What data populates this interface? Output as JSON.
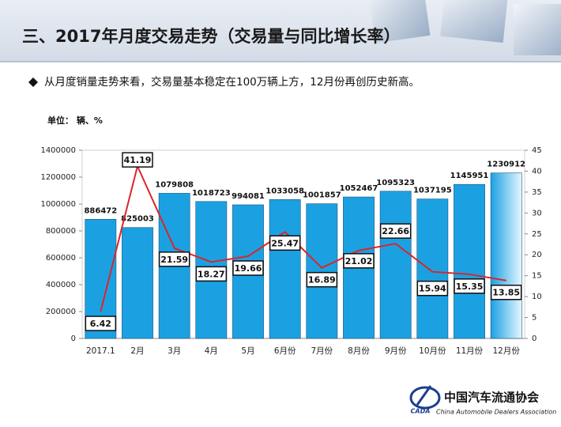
{
  "header": {
    "title": "三、2017年月度交易走势（交易量与同比增长率）"
  },
  "bullet": "从月度销量走势来看，交易量基本稳定在100万辆上方，12月份再创历史新高。",
  "chart_data": {
    "type": "bar-line",
    "unit_label": "单位：  辆、%",
    "categories": [
      "2017.1",
      "2月",
      "3月",
      "4月",
      "5月",
      "6月份",
      "7月份",
      "8月份",
      "9月份",
      "10月份",
      "11月份",
      "12月份"
    ],
    "series": [
      {
        "type": "bar",
        "color": "#1ba1e2",
        "values": [
          886472,
          825003,
          1079808,
          1018723,
          994081,
          1033058,
          1001857,
          1052467,
          1095323,
          1037195,
          1145951,
          1230912
        ]
      },
      {
        "type": "line",
        "axis": "y2",
        "color": "#d9262a",
        "values": [
          6.42,
          41.19,
          21.59,
          18.27,
          19.66,
          25.47,
          16.89,
          21.02,
          22.66,
          15.94,
          15.35,
          13.85
        ]
      }
    ],
    "ylim": [
      0,
      1400000
    ],
    "yticks": [
      0,
      200000,
      400000,
      600000,
      800000,
      1000000,
      1200000,
      1400000
    ],
    "y2lim": [
      0,
      45
    ],
    "y2ticks": [
      0,
      5,
      10,
      15,
      20,
      25,
      30,
      35,
      40,
      45
    ]
  },
  "logo": {
    "abbr": "CADA",
    "name_cn": "中国汽车流通协会",
    "name_en": "China Automobile Dealers Association"
  }
}
